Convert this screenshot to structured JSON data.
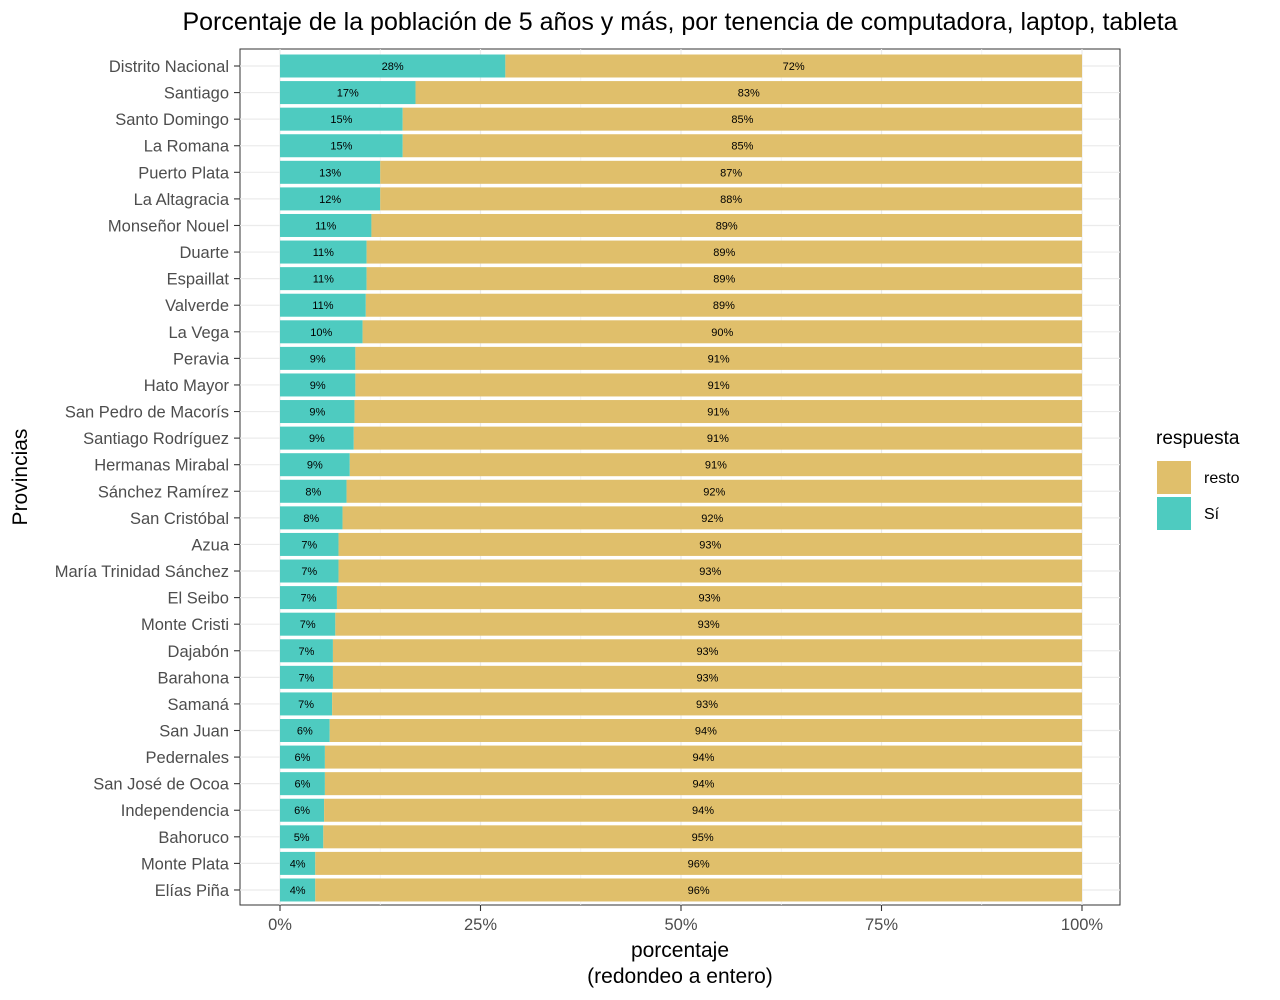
{
  "chart_data": {
    "type": "bar",
    "orientation": "horizontal",
    "stacked": true,
    "title": "Porcentaje de la población de 5 años y más, por tenencia de computadora, laptop, tableta",
    "xlabel": "porcentaje",
    "xlabel_sub": "(redondeo a entero)",
    "ylabel": "Provincias",
    "xlim": [
      0,
      100
    ],
    "x_ticks": [
      "0%",
      "25%",
      "50%",
      "75%",
      "100%"
    ],
    "grid": true,
    "legend": {
      "title": "respuesta",
      "position": "right",
      "entries": [
        {
          "name": "resto",
          "color": "#E0BF6B"
        },
        {
          "name": "Sí",
          "color": "#4ECBC0"
        }
      ]
    },
    "categories": [
      "Distrito Nacional",
      "Santiago",
      "Santo Domingo",
      "La Romana",
      "Puerto Plata",
      "La Altagracia",
      "Monseñor Nouel",
      "Duarte",
      "Espaillat",
      "Valverde",
      "La Vega",
      "Peravia",
      "Hato Mayor",
      "San Pedro de Macorís",
      "Santiago Rodríguez",
      "Hermanas Mirabal",
      "Sánchez Ramírez",
      "San Cristóbal",
      "Azua",
      "María Trinidad Sánchez",
      "El Seibo",
      "Monte Cristi",
      "Dajabón",
      "Barahona",
      "Samaná",
      "San Juan",
      "Pedernales",
      "San José de Ocoa",
      "Independencia",
      "Bahoruco",
      "Monte Plata",
      "Elías Piña"
    ],
    "series": [
      {
        "name": "Sí",
        "values": [
          28.1,
          16.9,
          15.3,
          15.3,
          12.5,
          12.5,
          11.4,
          10.8,
          10.8,
          10.7,
          10.3,
          9.4,
          9.4,
          9.3,
          9.2,
          8.7,
          8.3,
          7.8,
          7.3,
          7.3,
          7.1,
          6.9,
          6.6,
          6.6,
          6.5,
          6.2,
          5.6,
          5.6,
          5.5,
          5.4,
          4.4,
          4.4
        ],
        "labels": [
          "28%",
          "17%",
          "15%",
          "15%",
          "13%",
          "12%",
          "11%",
          "11%",
          "11%",
          "11%",
          "10%",
          "9%",
          "9%",
          "9%",
          "9%",
          "9%",
          "8%",
          "8%",
          "7%",
          "7%",
          "7%",
          "7%",
          "7%",
          "7%",
          "7%",
          "6%",
          "6%",
          "6%",
          "6%",
          "5%",
          "4%",
          "4%"
        ]
      },
      {
        "name": "resto",
        "values": [
          71.9,
          83.1,
          84.7,
          84.7,
          87.5,
          87.5,
          88.6,
          89.2,
          89.2,
          89.3,
          89.7,
          90.6,
          90.6,
          90.7,
          90.8,
          91.3,
          91.7,
          92.2,
          92.7,
          92.7,
          92.9,
          93.1,
          93.4,
          93.4,
          93.5,
          93.8,
          94.4,
          94.4,
          94.5,
          94.6,
          95.6,
          95.6
        ],
        "labels": [
          "72%",
          "83%",
          "85%",
          "85%",
          "87%",
          "88%",
          "89%",
          "89%",
          "89%",
          "89%",
          "90%",
          "91%",
          "91%",
          "91%",
          "91%",
          "91%",
          "92%",
          "92%",
          "93%",
          "93%",
          "93%",
          "93%",
          "93%",
          "93%",
          "93%",
          "94%",
          "94%",
          "94%",
          "94%",
          "95%",
          "96%",
          "96%"
        ]
      }
    ]
  }
}
